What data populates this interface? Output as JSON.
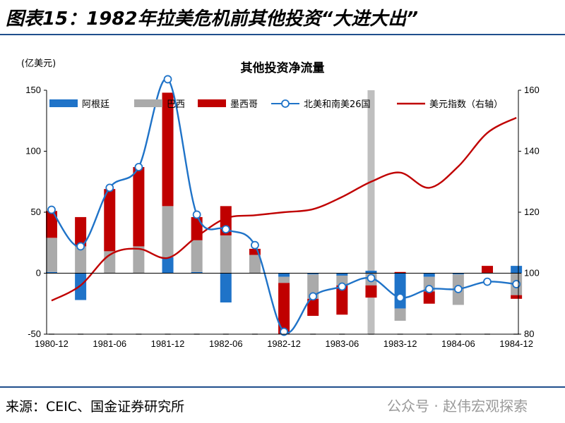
{
  "figure": {
    "title": "图表15：1982年拉美危机前其他投资“大进大出”",
    "source": "来源：CEIC、国金证券研究所",
    "watermark": "公众号 · 赵伟宏观探索"
  },
  "colors": {
    "argentina": "#1f73c8",
    "brazil": "#aaaaaa",
    "mexico": "#c00000",
    "north_south_america_26": "#1f73c8",
    "usd_index": "#c00000",
    "highlight_band": "#bfbfbf",
    "rules": "#1f4e8c"
  },
  "chart_data": {
    "type": "bar",
    "title": "其他投资净流量",
    "y_unit_label": "(亿美元)",
    "ylim": [
      -50,
      150
    ],
    "yticks": [
      -50,
      0,
      50,
      100,
      150
    ],
    "y2lim": [
      80,
      160
    ],
    "y2ticks": [
      80,
      100,
      120,
      140,
      160
    ],
    "x_tick_labels": [
      "1980-12",
      "1981-06",
      "1981-12",
      "1982-06",
      "1982-12",
      "1983-06",
      "1983-12",
      "1984-06",
      "1984-12"
    ],
    "categories": [
      "1980-12",
      "1981-03",
      "1981-06",
      "1981-09",
      "1981-12",
      "1982-03",
      "1982-06",
      "1982-09",
      "1982-12",
      "1983-03",
      "1983-06",
      "1983-09",
      "1983-12",
      "1984-03",
      "1984-06",
      "1984-09",
      "1984-12"
    ],
    "legend_position": "top",
    "highlight_band_category": "1983-09",
    "series": [
      {
        "name": "阿根廷",
        "kind": "stacked-bar",
        "values": [
          1,
          -22,
          0,
          0,
          13,
          1,
          -24,
          0,
          -3,
          -1,
          -2,
          2,
          -29,
          -3,
          -1,
          0,
          6
        ]
      },
      {
        "name": "巴西",
        "kind": "stacked-bar",
        "values": [
          28,
          22,
          18,
          22,
          42,
          26,
          31,
          15,
          -5,
          -20,
          -8,
          -10,
          -10,
          -12,
          -25,
          0,
          -18
        ]
      },
      {
        "name": "墨西哥",
        "kind": "stacked-bar",
        "values": [
          22,
          24,
          51,
          65,
          93,
          19,
          24,
          5,
          -42,
          -14,
          -24,
          -10,
          1,
          -10,
          0,
          6,
          -3
        ]
      },
      {
        "name": "北美和南美26国",
        "kind": "line-markers",
        "axis": "left",
        "values": [
          52,
          22,
          70,
          87,
          159,
          48,
          36,
          23,
          -48,
          -19,
          -11,
          -4,
          -20,
          -13,
          -13,
          -7,
          -9
        ]
      },
      {
        "name": "美元指数（右轴）",
        "kind": "line",
        "axis": "right",
        "values": [
          91,
          96,
          106,
          108,
          105,
          112,
          118,
          119,
          120,
          121,
          125,
          130,
          133,
          128,
          135,
          146,
          151
        ]
      }
    ]
  }
}
